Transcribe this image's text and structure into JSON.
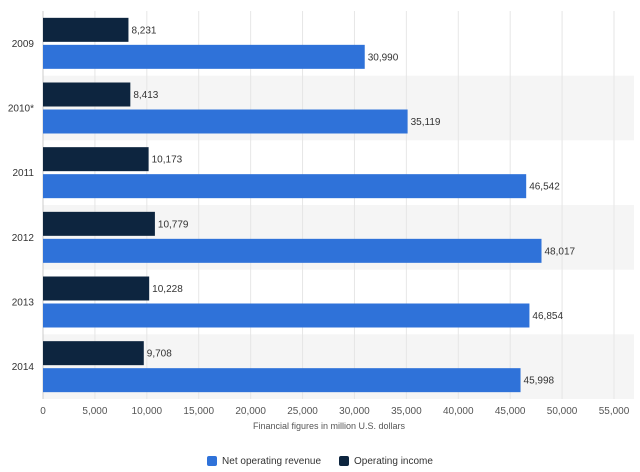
{
  "chart_data": {
    "type": "bar",
    "orientation": "horizontal",
    "categories": [
      "2009",
      "2010*",
      "2011",
      "2012",
      "2013",
      "2014"
    ],
    "series": [
      {
        "name": "Operating income",
        "values": [
          8231,
          8413,
          10173,
          10779,
          10228,
          9708
        ],
        "color": "#0d253f"
      },
      {
        "name": "Net operating revenue",
        "values": [
          30990,
          35119,
          46542,
          48017,
          46854,
          45998
        ],
        "color": "#2f72d9"
      }
    ],
    "data_labels": [
      [
        "8,231",
        "8,413",
        "10,173",
        "10,779",
        "10,228",
        "9,708"
      ],
      [
        "30,990",
        "35,119",
        "46,542",
        "48,017",
        "46,854",
        "45,998"
      ]
    ],
    "xlabel": "Financial figures in million U.S. dollars",
    "ylabel": "",
    "xlim": [
      0,
      55000
    ],
    "x_ticks": [
      0,
      5000,
      10000,
      15000,
      20000,
      25000,
      30000,
      35000,
      40000,
      45000,
      50000,
      55000
    ],
    "x_tick_labels": [
      "0",
      "5,000",
      "10,000",
      "15,000",
      "20,000",
      "25,000",
      "30,000",
      "35,000",
      "40,000",
      "45,000",
      "50,000",
      "55,000"
    ],
    "legend": {
      "position": "bottom",
      "entries": [
        {
          "label": "Net operating revenue",
          "color": "#2f72d9"
        },
        {
          "label": "Operating income",
          "color": "#0d253f"
        }
      ]
    },
    "grid": true,
    "band_color": "#f5f5f5"
  }
}
